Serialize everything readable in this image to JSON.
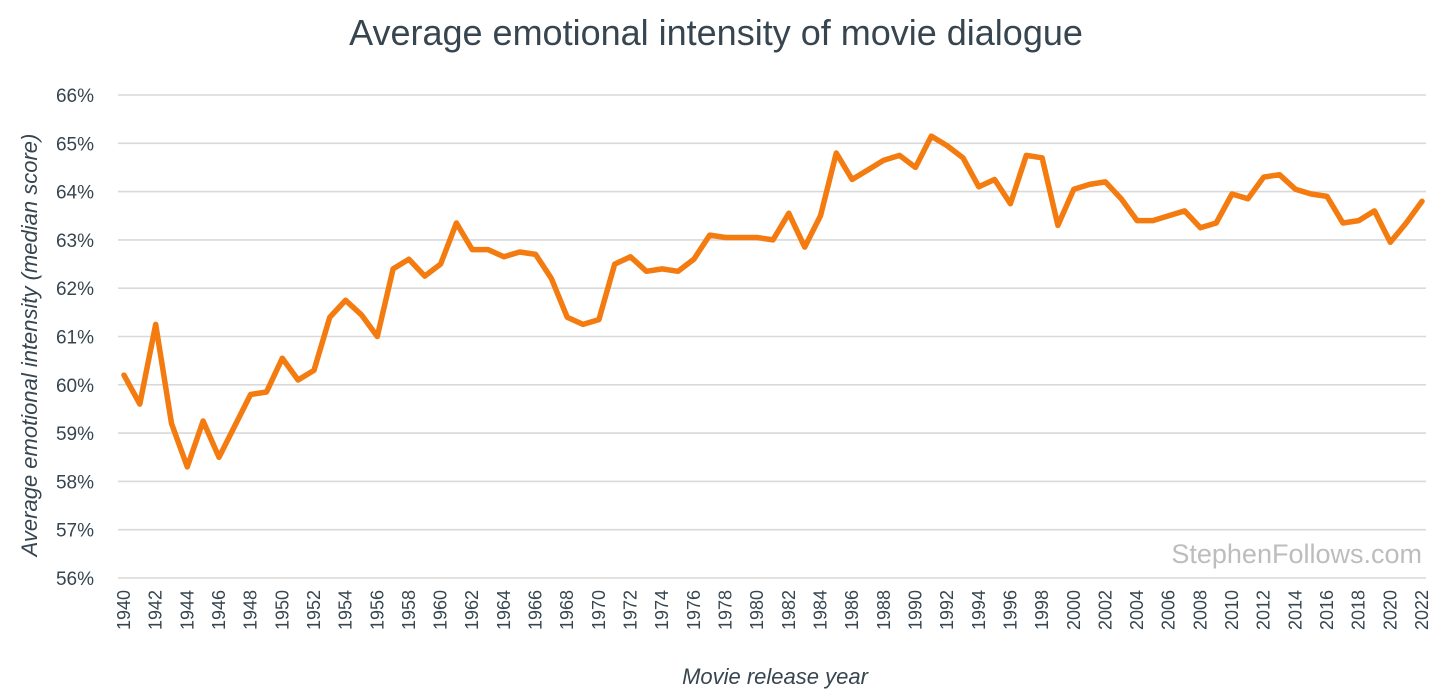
{
  "chart_data": {
    "type": "line",
    "title": "Average emotional intensity of movie dialogue",
    "xlabel": "Movie release year",
    "ylabel": "Average emotional intensity (median score)",
    "ylim": [
      56,
      66
    ],
    "yticks": [
      "56%",
      "57%",
      "58%",
      "59%",
      "60%",
      "61%",
      "62%",
      "63%",
      "64%",
      "65%",
      "66%"
    ],
    "xticks": [
      "1940",
      "1942",
      "1944",
      "1946",
      "1948",
      "1950",
      "1952",
      "1954",
      "1956",
      "1958",
      "1960",
      "1962",
      "1964",
      "1966",
      "1968",
      "1970",
      "1972",
      "1974",
      "1976",
      "1978",
      "1980",
      "1982",
      "1984",
      "1986",
      "1988",
      "1990",
      "1992",
      "1994",
      "1996",
      "1998",
      "2000",
      "2002",
      "2004",
      "2006",
      "2008",
      "2010",
      "2012",
      "2014",
      "2016",
      "2018",
      "2020",
      "2022"
    ],
    "xlim": [
      1940,
      2022
    ],
    "grid": true,
    "watermark": "StephenFollows.com",
    "series": [
      {
        "name": "Average emotional intensity",
        "color": "#f47b0f",
        "x": [
          1940,
          1941,
          1942,
          1943,
          1944,
          1945,
          1946,
          1947,
          1948,
          1949,
          1950,
          1951,
          1952,
          1953,
          1954,
          1955,
          1956,
          1957,
          1958,
          1959,
          1960,
          1961,
          1962,
          1963,
          1964,
          1965,
          1966,
          1967,
          1968,
          1969,
          1970,
          1971,
          1972,
          1973,
          1974,
          1975,
          1976,
          1977,
          1978,
          1979,
          1980,
          1981,
          1982,
          1983,
          1984,
          1985,
          1986,
          1987,
          1988,
          1989,
          1990,
          1991,
          1992,
          1993,
          1994,
          1995,
          1996,
          1997,
          1998,
          1999,
          2000,
          2001,
          2002,
          2003,
          2004,
          2005,
          2006,
          2007,
          2008,
          2009,
          2010,
          2011,
          2012,
          2013,
          2014,
          2015,
          2016,
          2017,
          2018,
          2019,
          2020,
          2021,
          2022
        ],
        "values": [
          60.2,
          59.6,
          61.25,
          59.2,
          58.3,
          59.25,
          58.5,
          59.15,
          59.8,
          59.85,
          60.55,
          60.1,
          60.3,
          61.4,
          61.75,
          61.45,
          61.0,
          62.4,
          62.6,
          62.25,
          62.5,
          63.35,
          62.8,
          62.8,
          62.65,
          62.75,
          62.7,
          62.2,
          61.4,
          61.25,
          61.35,
          62.5,
          62.65,
          62.35,
          62.4,
          62.35,
          62.6,
          63.1,
          63.05,
          63.05,
          63.05,
          63.0,
          63.55,
          62.85,
          63.5,
          64.8,
          64.25,
          64.45,
          64.65,
          64.75,
          64.5,
          65.15,
          64.95,
          64.7,
          64.1,
          64.25,
          63.75,
          64.75,
          64.7,
          63.3,
          64.05,
          64.15,
          64.2,
          63.85,
          63.4,
          63.4,
          63.5,
          63.6,
          63.25,
          63.35,
          63.95,
          63.85,
          64.3,
          64.35,
          64.05,
          63.95,
          63.9,
          63.35,
          63.4,
          63.6,
          62.95,
          63.35,
          63.8
        ]
      }
    ]
  }
}
